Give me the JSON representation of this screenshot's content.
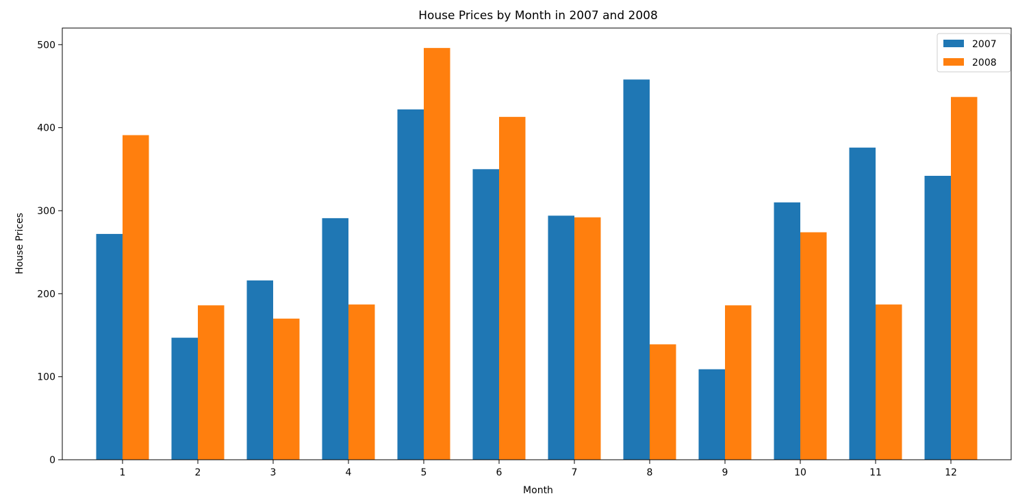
{
  "chart_data": {
    "type": "bar",
    "title": "House Prices by Month in 2007 and 2008",
    "xlabel": "Month",
    "ylabel": "House Prices",
    "categories": [
      "1",
      "2",
      "3",
      "4",
      "5",
      "6",
      "7",
      "8",
      "9",
      "10",
      "11",
      "12"
    ],
    "series": [
      {
        "name": "2007",
        "color": "#1f77b4",
        "values": [
          272,
          147,
          216,
          291,
          422,
          350,
          294,
          458,
          109,
          310,
          376,
          342
        ]
      },
      {
        "name": "2008",
        "color": "#ff7f0e",
        "values": [
          391,
          186,
          170,
          187,
          496,
          413,
          292,
          139,
          186,
          274,
          187,
          437
        ]
      }
    ],
    "ylim": [
      0,
      520
    ],
    "yticks": [
      0,
      100,
      200,
      300,
      400,
      500
    ],
    "grid": false,
    "legend_position": "top-right"
  }
}
